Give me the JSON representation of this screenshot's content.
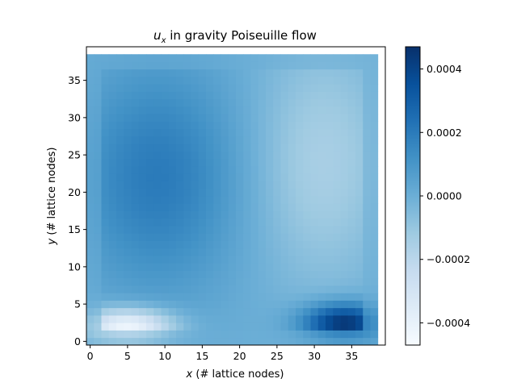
{
  "chart_data": {
    "type": "heatmap",
    "title_prefix": "u",
    "title_subscript": "x",
    "title_suffix": " in gravity Poiseuille flow",
    "xlabel_var": "x",
    "xlabel_rest": " (# lattice nodes)",
    "ylabel_var": "y",
    "ylabel_rest": " (# lattice nodes)",
    "grid_cols": 39,
    "grid_rows": 39,
    "xlim": [
      -0.5,
      39.5
    ],
    "ylim": [
      -0.5,
      39.5
    ],
    "x_ticks": [
      "0",
      "5",
      "10",
      "15",
      "20",
      "25",
      "30",
      "35"
    ],
    "y_ticks": [
      "0",
      "5",
      "10",
      "15",
      "20",
      "25",
      "30",
      "35"
    ],
    "colormap": "Blues",
    "colorbar_range": [
      -0.00047,
      0.00047
    ],
    "colorbar_ticks": [
      "−0.0004",
      "−0.0002",
      "0.0000",
      "0.0002",
      "0.0004"
    ],
    "field_description_anchor_values": {
      "left_vortex_center": 0.0002,
      "right_upper_region": -0.00015,
      "bottom_left_jet": -0.00045,
      "bottom_right_jet": 0.00047
    }
  }
}
